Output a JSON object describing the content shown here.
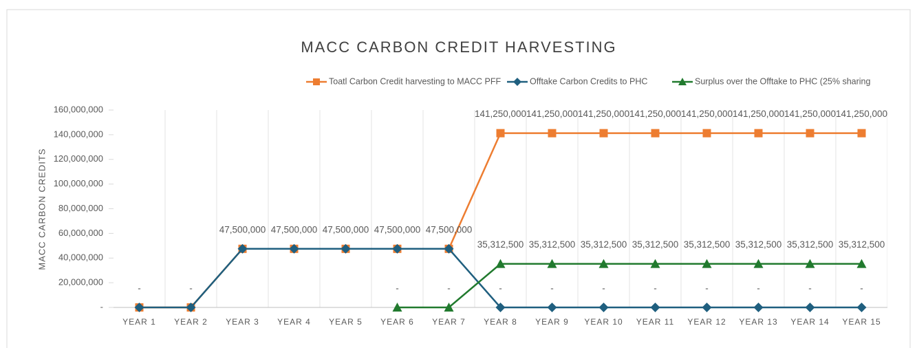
{
  "chart_data": {
    "type": "line",
    "title": "MACC CARBON CREDIT HARVESTING",
    "y_label": "MACC CARBON CREDITS",
    "categories": [
      "YEAR 1",
      "YEAR 2",
      "YEAR 3",
      "YEAR 4",
      "YEAR 5",
      "YEAR 6",
      "YEAR 7",
      "YEAR 8",
      "YEAR 9",
      "YEAR 10",
      "YEAR 11",
      "YEAR 12",
      "YEAR 13",
      "YEAR 14",
      "YEAR 15"
    ],
    "ylim": [
      0,
      160000000
    ],
    "yticks": [
      {
        "value": 0,
        "label": "-"
      },
      {
        "value": 20000000,
        "label": "20,000,000"
      },
      {
        "value": 40000000,
        "label": "40,000,000"
      },
      {
        "value": 60000000,
        "label": "60,000,000"
      },
      {
        "value": 80000000,
        "label": "80,000,000"
      },
      {
        "value": 100000000,
        "label": "100,000,000"
      },
      {
        "value": 120000000,
        "label": "120,000,000"
      },
      {
        "value": 140000000,
        "label": "140,000,000"
      },
      {
        "value": 160000000,
        "label": "160,000,000"
      }
    ],
    "legend": "top-right",
    "series": [
      {
        "name": "Toatl Carbon Credit harvesting to MACC PFF",
        "color": "#ed7d31",
        "marker": "square",
        "values": [
          0,
          0,
          47500000,
          47500000,
          47500000,
          47500000,
          47500000,
          141250000,
          141250000,
          141250000,
          141250000,
          141250000,
          141250000,
          141250000,
          141250000
        ],
        "value_labels": [
          "-",
          "-",
          "47,500,000",
          "47,500,000",
          "47,500,000",
          "47,500,000",
          "47,500,000",
          "141,250,000",
          "141,250,000",
          "141,250,000",
          "141,250,000",
          "141,250,000",
          "141,250,000",
          "141,250,000",
          "141,250,000"
        ]
      },
      {
        "name": "Offtake Carbon Credits to PHC",
        "color": "#1f5f7f",
        "marker": "diamond",
        "values": [
          0,
          0,
          47500000,
          47500000,
          47500000,
          47500000,
          47500000,
          0,
          0,
          0,
          0,
          0,
          0,
          0,
          0
        ],
        "value_labels": [
          null,
          null,
          null,
          null,
          null,
          null,
          null,
          "-",
          "-",
          "-",
          "-",
          "-",
          "-",
          "-",
          "-"
        ]
      },
      {
        "name": "Surplus over the Offtake to PHC (25% sharing",
        "color": "#217a2e",
        "marker": "triangle",
        "values": [
          null,
          null,
          null,
          null,
          null,
          0,
          0,
          35312500,
          35312500,
          35312500,
          35312500,
          35312500,
          35312500,
          35312500,
          35312500
        ],
        "value_labels": [
          null,
          null,
          null,
          null,
          null,
          "-",
          "-",
          "35,312,500",
          "35,312,500",
          "35,312,500",
          "35,312,500",
          "35,312,500",
          "35,312,500",
          "35,312,500",
          "35,312,500"
        ]
      }
    ]
  }
}
